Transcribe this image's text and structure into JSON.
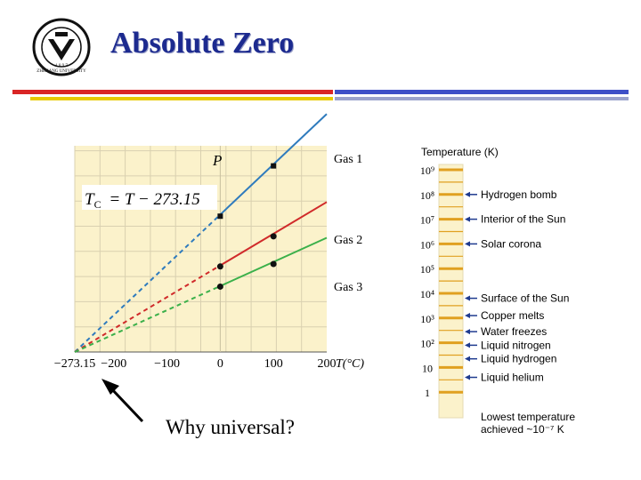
{
  "slide": {
    "title": "Absolute Zero",
    "caption": "Why universal?",
    "logo_text": "ZHEJIANG UNIVERSITY",
    "logo_year": "1 8 9 7",
    "colors": {
      "title": "#1c2a8f",
      "bar_red": "#d92525",
      "bar_blue": "#3d4fc7",
      "bar_gold": "#e7c900",
      "bar_grey": "#9aa2cc"
    }
  },
  "chart_data": [
    {
      "type": "line",
      "title": "",
      "ylabel": "P",
      "xlabel": "T(°C)",
      "equation": {
        "lhs": "T",
        "lhs_sub": "C",
        "rhs": "= T − 273.15"
      },
      "xlim": [
        -273.15,
        200
      ],
      "ylim": [
        0,
        8.2
      ],
      "x_ticks": [
        "−273.15",
        "−200",
        "−100",
        "0",
        "100",
        "200"
      ],
      "x_tick_values": [
        -273.15,
        -200,
        -100,
        0,
        100,
        200
      ],
      "grid": true,
      "background": "#fbf2cb",
      "series": [
        {
          "name": "Gas 1",
          "color": "#2f7bbd",
          "slope": 0.02,
          "points": [
            {
              "x": 0,
              "y": 5.4
            },
            {
              "x": 100,
              "y": 7.4
            }
          ]
        },
        {
          "name": "Gas 2",
          "color": "#d02a2a",
          "slope": 0.0126,
          "points": [
            {
              "x": 0,
              "y": 3.4
            },
            {
              "x": 100,
              "y": 4.6
            }
          ]
        },
        {
          "name": "Gas 3",
          "color": "#3bb04a",
          "slope": 0.0096,
          "points": [
            {
              "x": 0,
              "y": 2.6
            },
            {
              "x": 100,
              "y": 3.5
            }
          ]
        }
      ]
    },
    {
      "type": "table",
      "title": "Temperature (K)",
      "scale_labels": [
        "10⁹",
        "10⁸",
        "10⁷",
        "10⁶",
        "10⁵",
        "10⁴",
        "10³",
        "10²",
        "10",
        "1"
      ],
      "entries": [
        {
          "label": "Hydrogen bomb",
          "log_k": 8
        },
        {
          "label": "Interior of the Sun",
          "log_k": 7
        },
        {
          "label": "Solar corona",
          "log_k": 6
        },
        {
          "label": "Surface of the Sun",
          "log_k": 3.8
        },
        {
          "label": "Copper melts",
          "log_k": 3.1
        },
        {
          "label": "Water freezes",
          "log_k": 2.45
        },
        {
          "label": "Liquid nitrogen",
          "log_k": 1.9
        },
        {
          "label": "Liquid hydrogen",
          "log_k": 1.35
        },
        {
          "label": "Liquid helium",
          "log_k": 0.6
        }
      ],
      "footer_line1": "Lowest temperature",
      "footer_line2": "achieved ~10⁻⁷ K",
      "colors": {
        "bar": "#fbf2cb",
        "tick": "#e0a020",
        "arrow": "#1f3b8f"
      }
    }
  ]
}
